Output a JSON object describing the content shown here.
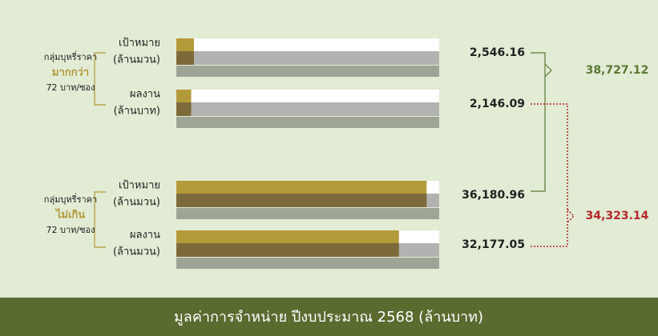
{
  "chart_data": {
    "type": "bar",
    "orientation": "horizontal",
    "title": "มูลค่าการจำหน่าย ปีงบประมาณ 2568 (ล้านบาท)",
    "groups": [
      {
        "label": [
          "กลุ่มบุหรี่ราคา",
          "มากกว่า",
          "72 บาท/ซอง"
        ],
        "rows": [
          {
            "label": [
              "เป้าหมาย",
              "(ล้านมวน)"
            ],
            "value": 2546.16,
            "value_label": "2,546.16"
          },
          {
            "label": [
              "ผลงาน",
              "(ล้านบาท)"
            ],
            "value": 2146.09,
            "value_label": "2,146.09"
          }
        ]
      },
      {
        "label": [
          "กลุ่มบุหรี่ราคา",
          "ไม่เกิน",
          "72 บาท/ซอง"
        ],
        "rows": [
          {
            "label": [
              "เป้าหมาย",
              "(ล้านมวน)"
            ],
            "value": 36180.96,
            "value_label": "36,180.96"
          },
          {
            "label": [
              "ผลงาน",
              "(ล้านมวน)"
            ],
            "value": 32177.05,
            "value_label": "32,177.05"
          }
        ]
      }
    ],
    "totals": [
      {
        "value": 38727.12,
        "label": "38,727.12",
        "color": "#5b7a34"
      },
      {
        "value": 34323.14,
        "label": "34,323.14",
        "color": "#b3282d"
      }
    ],
    "bar_colors": [
      "#b39a3a",
      "#7d6a3a"
    ],
    "xlim": [
      0,
      38000
    ]
  }
}
